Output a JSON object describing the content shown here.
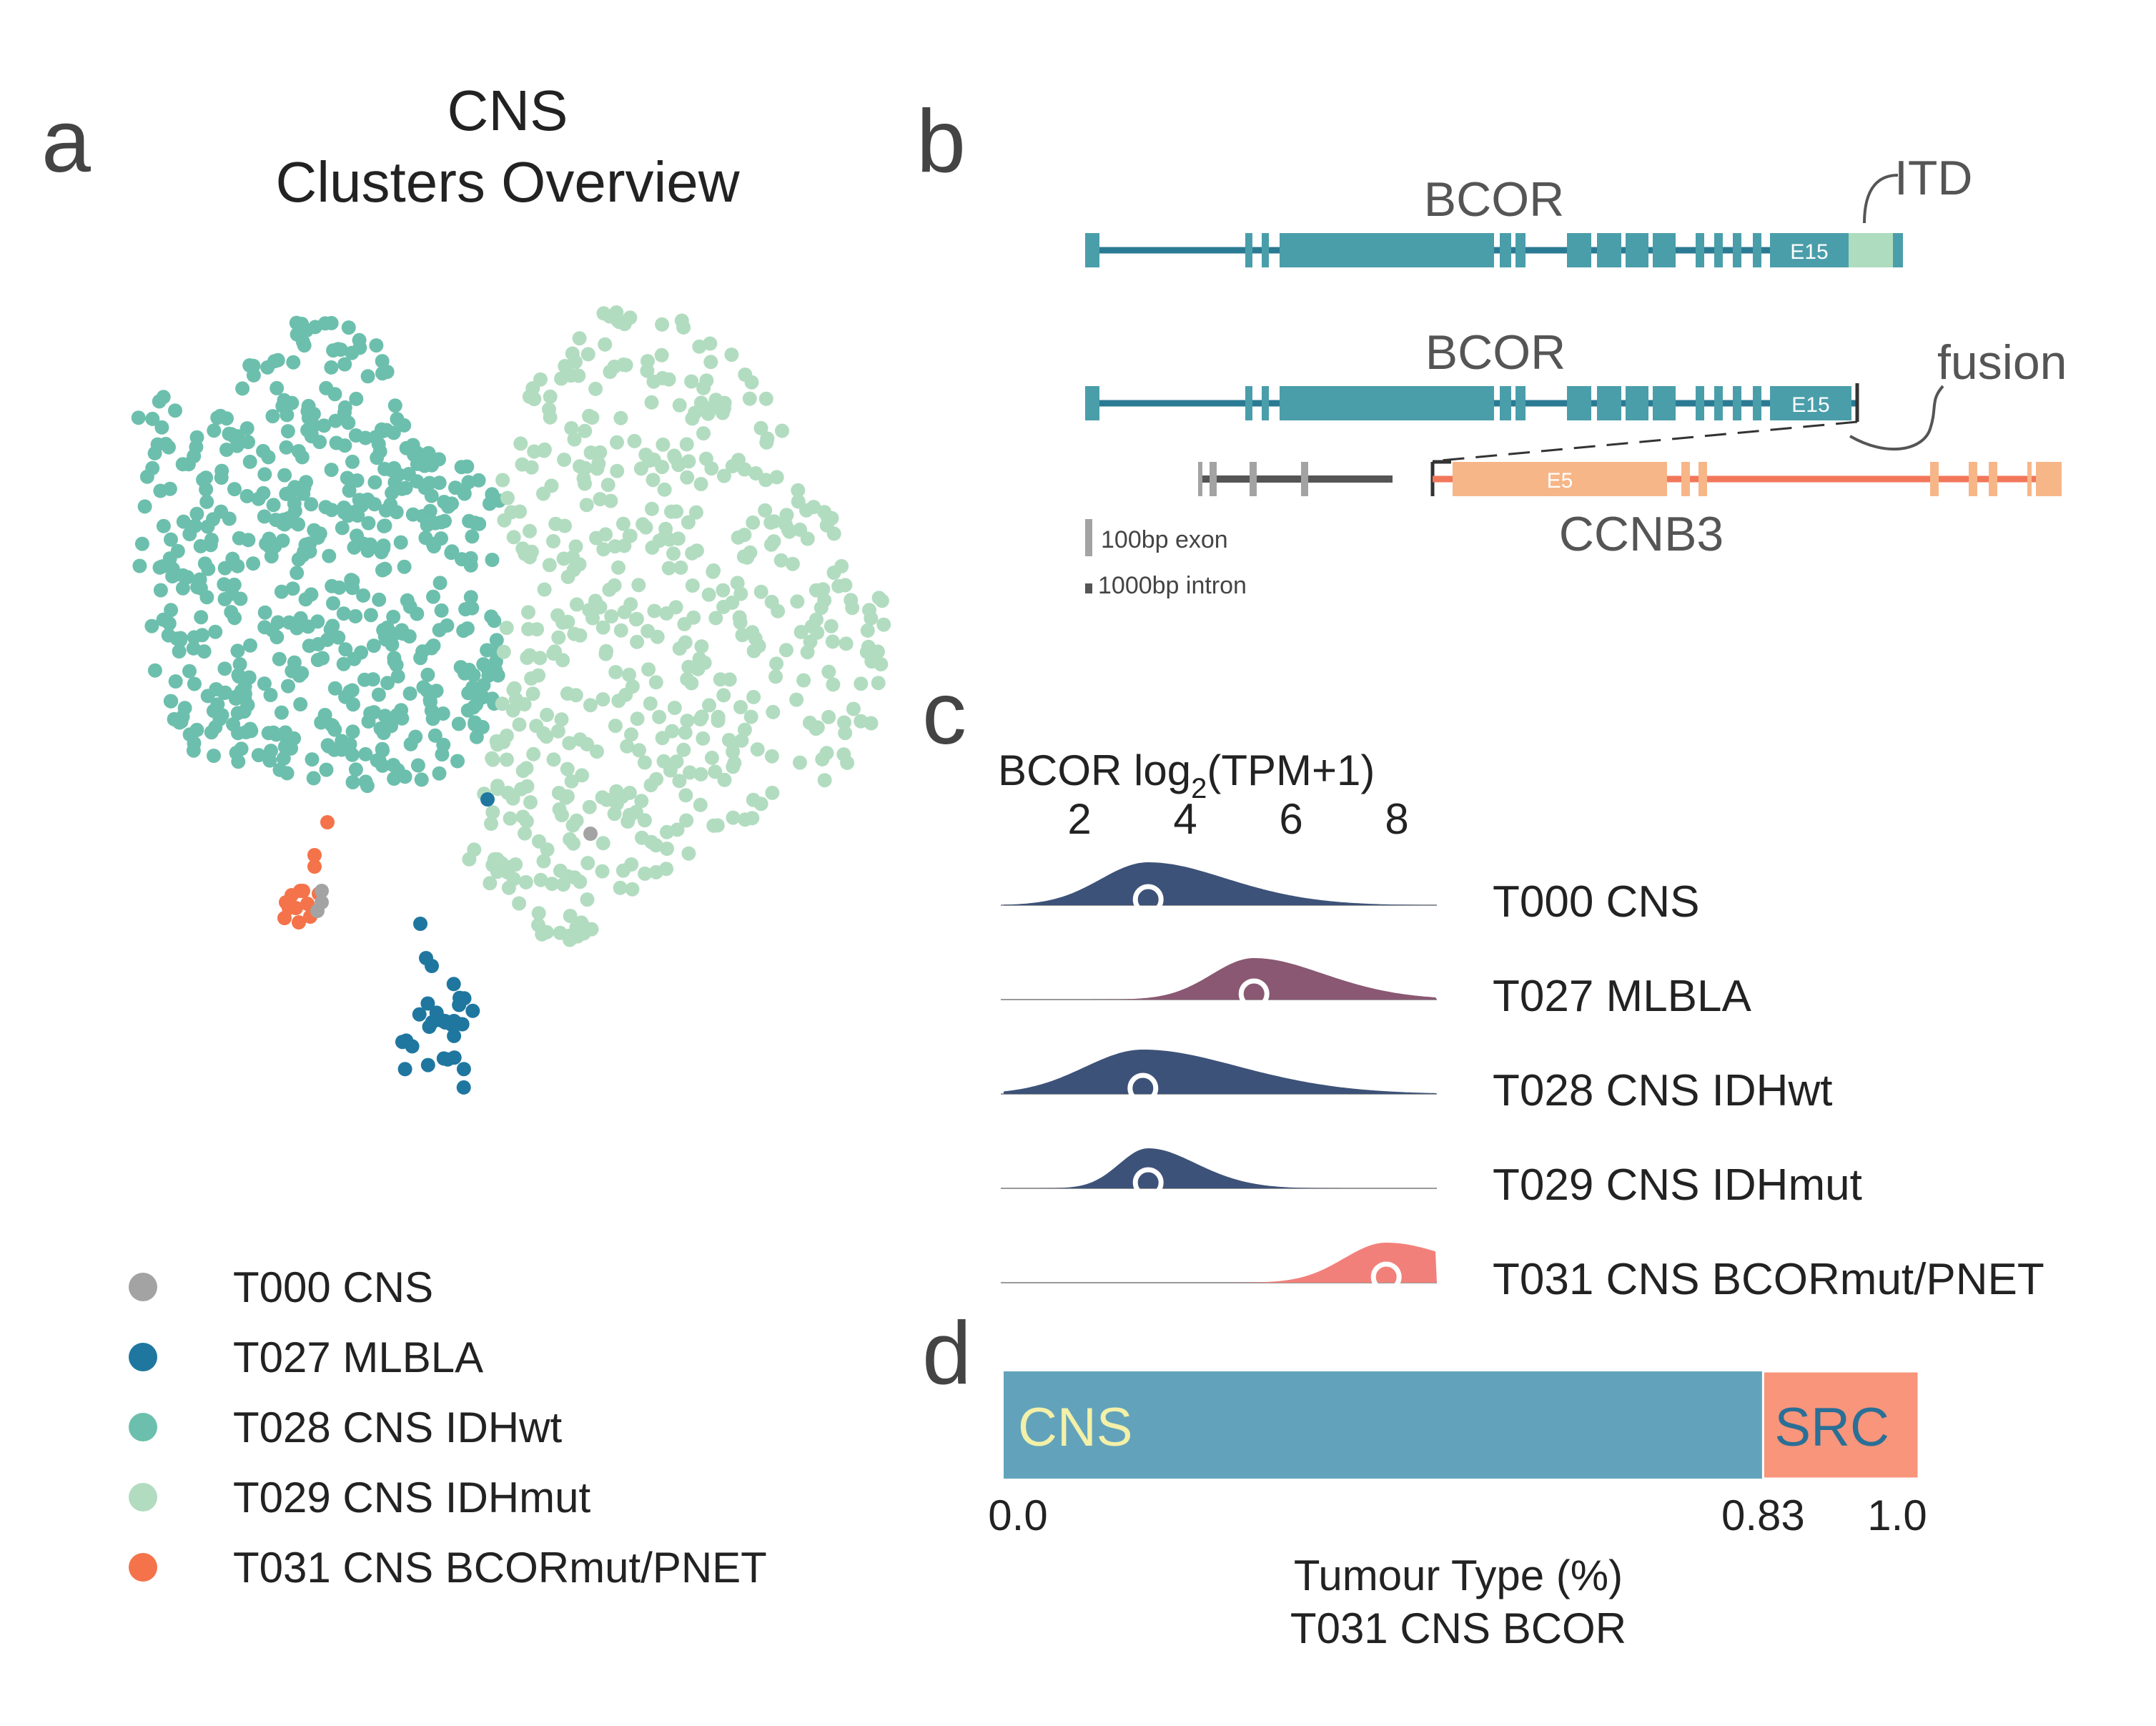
{
  "panels": {
    "a": {
      "letter": "a",
      "title_line1": "CNS",
      "title_line2": "Clusters Overview",
      "legend": [
        {
          "label": "T000 CNS",
          "color": "#a3a3a3"
        },
        {
          "label": "T027 MLBLA",
          "color": "#1f77a0"
        },
        {
          "label": "T028 CNS IDHwt",
          "color": "#6dbfad"
        },
        {
          "label": "T029 CNS IDHmut",
          "color": "#b2dcc0"
        },
        {
          "label": "T031 CNS BCORmut/PNET",
          "color": "#f4734a"
        }
      ]
    },
    "b": {
      "letter": "b",
      "gene1": "BCOR",
      "gene2": "BCOR",
      "gene3": "CCNB3",
      "itd_label": "ITD",
      "fusion_label": "fusion",
      "exon1": "E15",
      "exon2": "E15",
      "exon3": "E5",
      "scale_exon": "100bp exon",
      "scale_intron": "1000bp intron",
      "colors": {
        "bcor": "#4a9eaa",
        "bcor_line": "#2b7a93",
        "itd": "#aedcbe",
        "ccnb3": "#f7b688",
        "ccnb3_line": "#f2775a",
        "grey": "#555555"
      }
    },
    "c": {
      "letter": "c",
      "axis_label_main": "BCOR log",
      "axis_label_sub": "2",
      "axis_label_tail": "(TPM+1)",
      "ticks": [
        "2",
        "4",
        "6",
        "8"
      ],
      "rows": [
        {
          "label": "T000 CNS",
          "median": 3.3,
          "color": "#3d5278"
        },
        {
          "label": "T027 MLBLA",
          "median": 5.3,
          "color": "#8a5872"
        },
        {
          "label": "T028 CNS IDHwt",
          "median": 3.2,
          "color": "#3d5278"
        },
        {
          "label": "T029 CNS IDHmut",
          "median": 3.3,
          "color": "#3d5278"
        },
        {
          "label": "T031 CNS BCORmut/PNET",
          "median": 7.8,
          "color": "#f2807a"
        }
      ]
    },
    "d": {
      "letter": "d",
      "segments": [
        {
          "label": "CNS",
          "value": 0.83,
          "color": "#62a3bb",
          "text_color": "#f3f0a8"
        },
        {
          "label": "SRC",
          "value": 0.17,
          "color": "#f8957a",
          "text_color": "#2a6f96"
        }
      ],
      "tick_labels": [
        "0.0",
        "0.83",
        "1.0"
      ],
      "xlabel_line1": "Tumour Type (%)",
      "xlabel_line2": "T031 CNS BCOR"
    }
  },
  "chart_data": [
    {
      "type": "scatter",
      "title": "CNS Clusters Overview",
      "series": [
        {
          "name": "T000 CNS",
          "n_points": 4
        },
        {
          "name": "T027 MLBLA",
          "n_points": 30
        },
        {
          "name": "T028 CNS IDHwt",
          "n_points": 560
        },
        {
          "name": "T029 CNS IDHmut",
          "n_points": 520
        },
        {
          "name": "T031 CNS BCORmut/PNET",
          "n_points": 14
        }
      ]
    },
    {
      "type": "area",
      "xlabel": "BCOR log2(TPM+1)",
      "x_ticks": [
        2,
        4,
        6,
        8
      ],
      "categories": [
        "T000 CNS",
        "T027 MLBLA",
        "T028 CNS IDHwt",
        "T029 CNS IDHmut",
        "T031 CNS BCORmut/PNET"
      ],
      "medians": [
        3.3,
        5.3,
        3.2,
        3.3,
        7.8
      ]
    },
    {
      "type": "bar",
      "categories": [
        "CNS",
        "SRC"
      ],
      "values": [
        0.83,
        0.17
      ],
      "xlabel": "Tumour Type (%)\nT031 CNS BCOR",
      "xlim": [
        0,
        1.0
      ]
    }
  ]
}
